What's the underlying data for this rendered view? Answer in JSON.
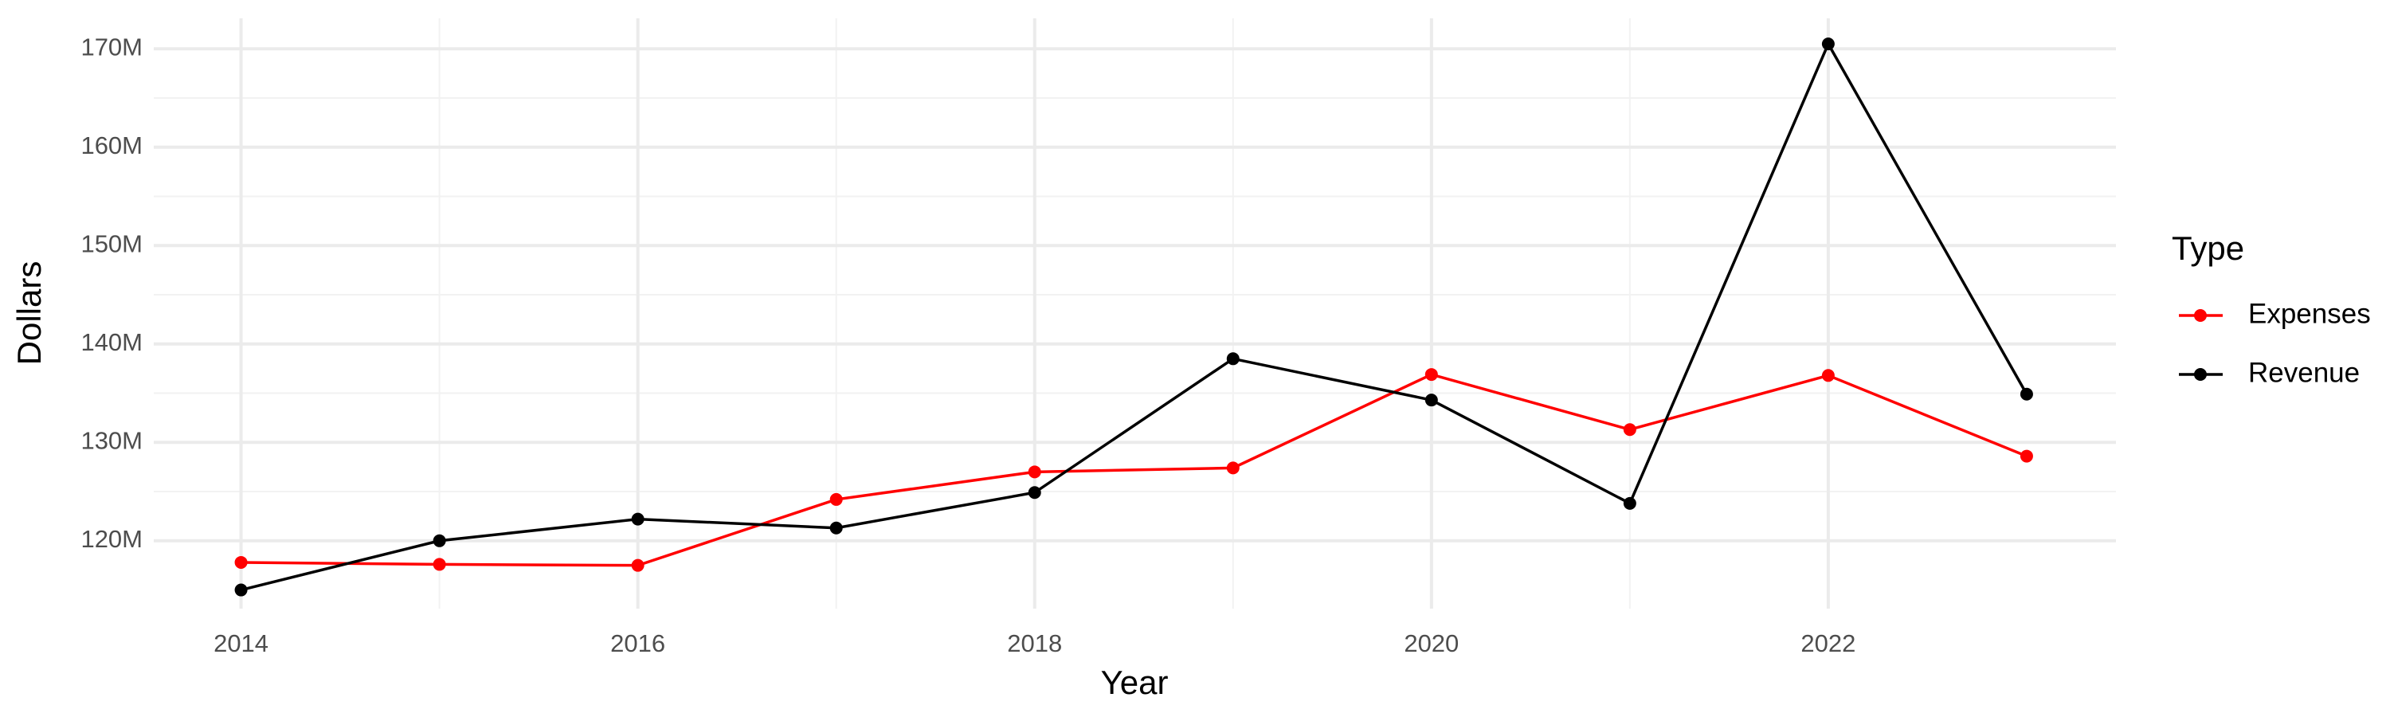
{
  "chart_data": {
    "type": "line",
    "x_label": "Year",
    "y_label": "Dollars",
    "legend_title": "Type",
    "x": [
      2014,
      2015,
      2016,
      2017,
      2018,
      2019,
      2020,
      2021,
      2022,
      2023
    ],
    "series": [
      {
        "name": "Expenses",
        "color": "#ff0000",
        "values": [
          117800000,
          117600000,
          117500000,
          124200000,
          127000000,
          127400000,
          136900000,
          131300000,
          136800000,
          128600000
        ]
      },
      {
        "name": "Revenue",
        "color": "#000000",
        "values": [
          115000000,
          120000000,
          122200000,
          121300000,
          124900000,
          138500000,
          134300000,
          123800000,
          170500000,
          134900000
        ]
      }
    ],
    "xlim": [
      2013.56,
      2023.45
    ],
    "xticks": [
      2014,
      2016,
      2018,
      2020,
      2022
    ],
    "ylim": [
      113100000,
      173100000
    ],
    "yticks": [
      {
        "value": 120000000,
        "label": "120M"
      },
      {
        "value": 130000000,
        "label": "130M"
      },
      {
        "value": 140000000,
        "label": "140M"
      },
      {
        "value": 150000000,
        "label": "150M"
      },
      {
        "value": 160000000,
        "label": "160M"
      },
      {
        "value": 170000000,
        "label": "170M"
      }
    ],
    "grid": true,
    "legend_position": "right"
  }
}
